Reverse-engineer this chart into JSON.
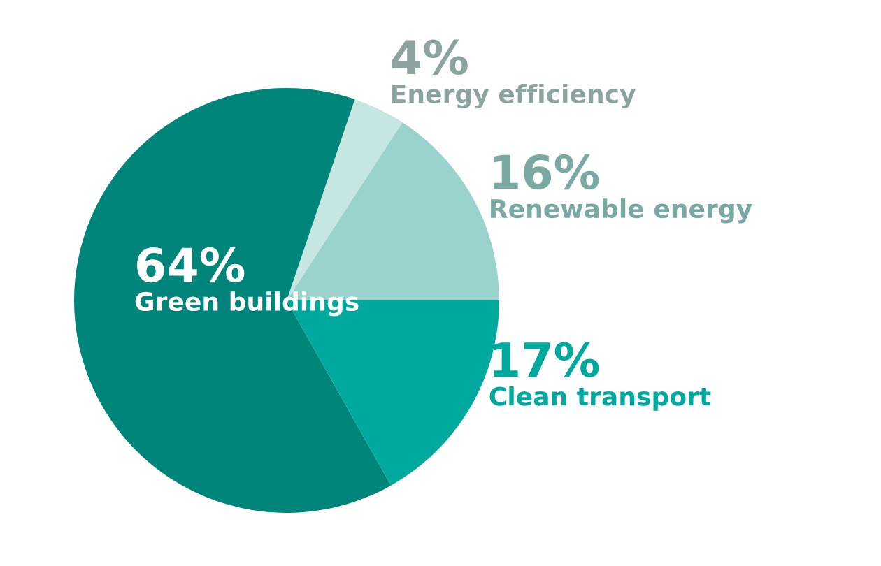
{
  "chart_data": {
    "type": "pie",
    "categories": [
      "Renewable energy",
      "Energy efficiency",
      "Green buildings",
      "Clean transport"
    ],
    "values": [
      16,
      4,
      64,
      17
    ],
    "value_labels": [
      "16%",
      "4%",
      "64%",
      "17%"
    ],
    "colors": [
      "#99d3cc",
      "#c5e6e2",
      "#00857a",
      "#00a99d"
    ]
  }
}
